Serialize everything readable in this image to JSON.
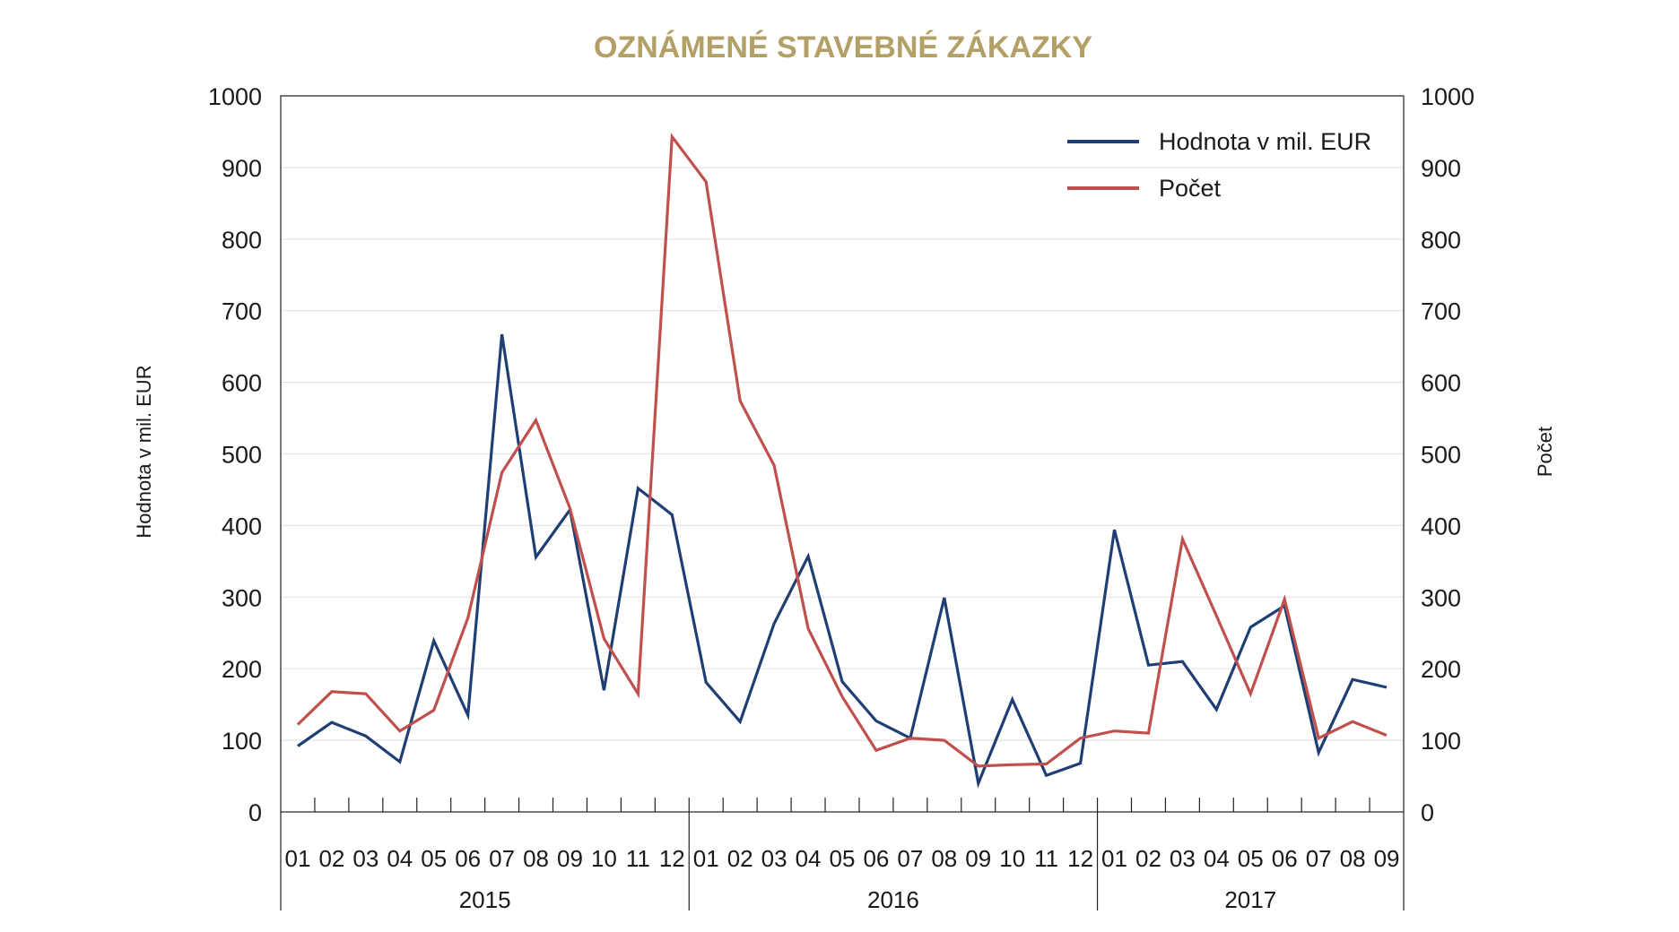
{
  "chart_data": {
    "type": "line",
    "title": "OZNÁMENÉ STAVEBNÉ ZÁKAZKY",
    "ylabel_left": "Hodnota v mil. EUR",
    "ylabel_right": "Počet",
    "ylim": [
      0,
      1000
    ],
    "yticks": [
      "0",
      "100",
      "200",
      "300",
      "400",
      "500",
      "600",
      "700",
      "800",
      "900",
      "1000"
    ],
    "grid": true,
    "legend_position": "top-right",
    "categories": [
      "01",
      "02",
      "03",
      "04",
      "05",
      "06",
      "07",
      "08",
      "09",
      "10",
      "11",
      "12",
      "01",
      "02",
      "03",
      "04",
      "05",
      "06",
      "07",
      "08",
      "09",
      "10",
      "11",
      "12",
      "01",
      "02",
      "03",
      "04",
      "05",
      "06",
      "07",
      "08",
      "09"
    ],
    "groups": [
      {
        "label": "2015",
        "count": 12
      },
      {
        "label": "2016",
        "count": 12
      },
      {
        "label": "2017",
        "count": 9
      }
    ],
    "series": [
      {
        "name": "Hodnota v mil. EUR",
        "color": "#1f3f74",
        "values": [
          92,
          125,
          106,
          70,
          239,
          135,
          667,
          356,
          422,
          170,
          452,
          415,
          181,
          126,
          263,
          357,
          182,
          127,
          103,
          299,
          40,
          157,
          51,
          68,
          394,
          205,
          210,
          143,
          258,
          288,
          83,
          185,
          174
        ]
      },
      {
        "name": "Počet",
        "color": "#c0504d",
        "values": [
          122,
          168,
          165,
          113,
          142,
          271,
          474,
          547,
          424,
          242,
          165,
          943,
          880,
          574,
          484,
          256,
          161,
          86,
          103,
          100,
          64,
          66,
          67,
          103,
          113,
          110,
          381,
          274,
          165,
          297,
          103,
          126,
          107
        ]
      }
    ]
  },
  "colors": {
    "title": "#b3a066",
    "grid": "#e3e3e3",
    "axis": "#222222"
  }
}
